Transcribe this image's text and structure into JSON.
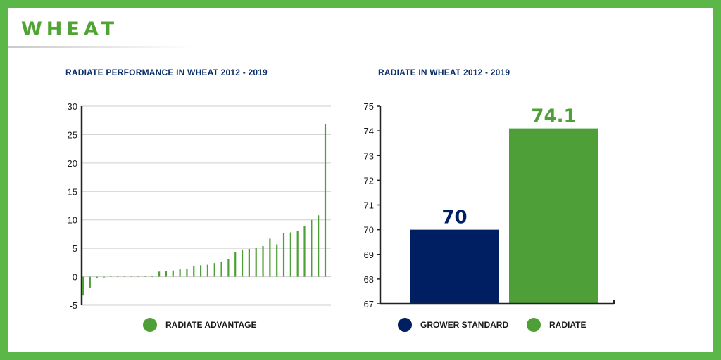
{
  "page_title": "WHEAT",
  "colors": {
    "green": "#4e9f37",
    "navy": "#001f63",
    "frame": "#5bb747"
  },
  "chart_data": [
    {
      "type": "bar",
      "title": "RADIATE PERFORMANCE IN WHEAT 2012 - 2019",
      "xlabel": "",
      "ylabel": "",
      "ylim": [
        -5,
        30
      ],
      "yticks": [
        30,
        25,
        20,
        15,
        10,
        5,
        0,
        -5
      ],
      "grid": true,
      "legend": "bottom-center",
      "series": [
        {
          "name": "RADIATE ADVANTAGE",
          "color": "#4e9f37",
          "values": [
            -3.3,
            -1.9,
            -0.3,
            -0.2,
            -0.1,
            0,
            0,
            0,
            0,
            0.1,
            0.2,
            0.9,
            1.0,
            1.1,
            1.3,
            1.4,
            1.9,
            2.0,
            2.1,
            2.4,
            2.6,
            3.1,
            4.4,
            4.8,
            4.9,
            5.1,
            5.4,
            6.7,
            5.7,
            7.7,
            7.8,
            8.1,
            8.9,
            10.0,
            10.8,
            26.8
          ]
        }
      ]
    },
    {
      "type": "bar",
      "title": "RADIATE IN WHEAT 2012 - 2019",
      "xlabel": "",
      "ylabel": "",
      "ylim": [
        67,
        75
      ],
      "yticks": [
        75,
        74,
        73,
        72,
        71,
        70,
        69,
        68,
        67
      ],
      "grid": false,
      "legend": "bottom-center",
      "categories": [
        "GROWER STANDARD",
        "RADIATE"
      ],
      "values": [
        70,
        74.1
      ],
      "labels": [
        "70",
        "74.1"
      ],
      "colors": [
        "#001f63",
        "#4e9f37"
      ]
    }
  ]
}
